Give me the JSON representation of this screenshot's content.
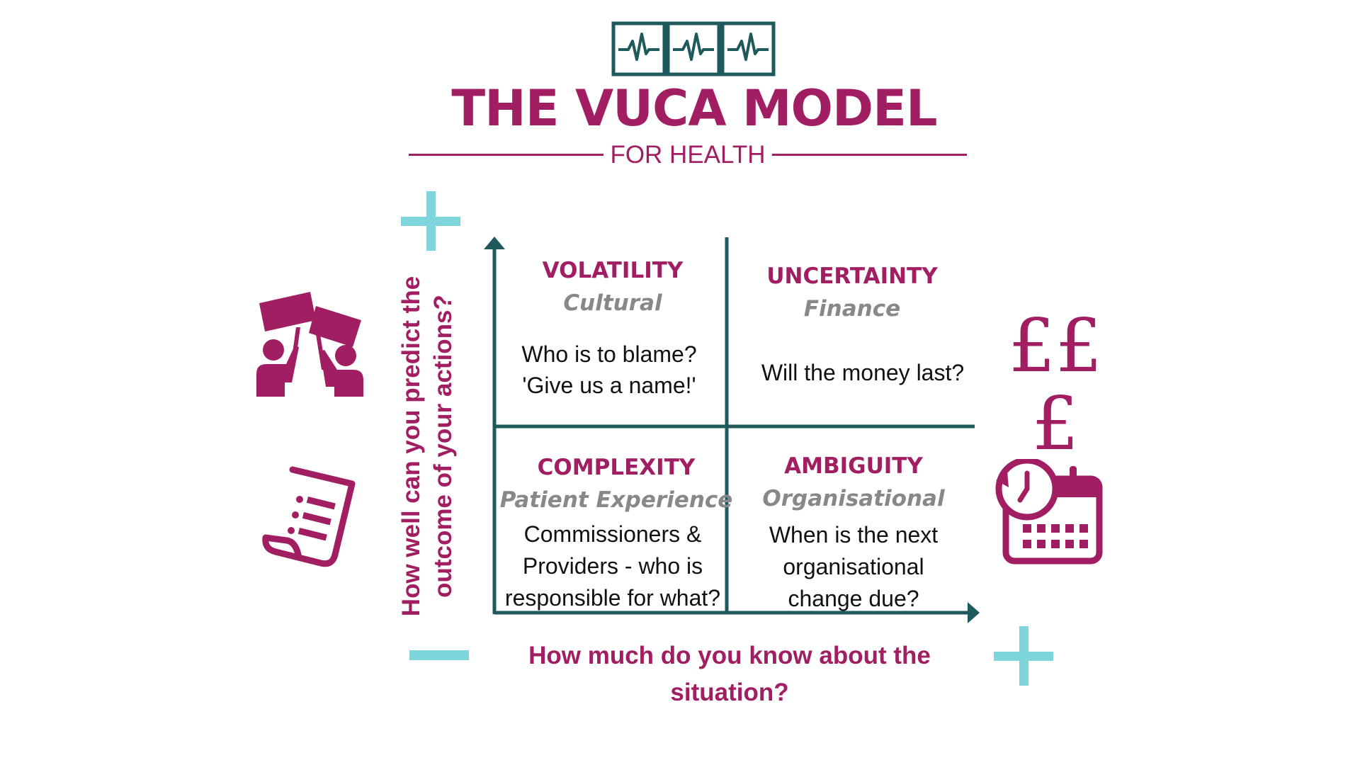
{
  "header": {
    "title": "THE VUCA MODEL",
    "subtitle": "FOR HEALTH",
    "logo_icon": "heartbeat-monitor-icon"
  },
  "axes": {
    "y_label": "How well can you predict the outcome of your actions?",
    "x_label": "How much do you know about the situation?",
    "y_top_sign": "+",
    "x_left_sign": "−",
    "x_right_sign": "+"
  },
  "quadrants": {
    "volatility": {
      "title": "VOLATILITY",
      "subtitle": "Cultural",
      "body_line1": "Who is to blame?",
      "body_line2": "'Give us a name!'",
      "icon": "protest-icon"
    },
    "uncertainty": {
      "title": "UNCERTAINTY",
      "subtitle": "Finance",
      "body_line1": "Will the money last?",
      "icon_text": "£££"
    },
    "complexity": {
      "title": "COMPLEXITY",
      "subtitle": "Patient Experience",
      "body_line1": "Commissioners &",
      "body_line2": "Providers - who is",
      "body_line3": "responsible for what?",
      "icon": "document-icon"
    },
    "ambiguity": {
      "title": "AMBIGUITY",
      "subtitle": "Organisational",
      "body_line1": "When is the next",
      "body_line2": "organisational",
      "body_line3": "change due?",
      "icon": "calendar-clock-icon"
    }
  },
  "colors": {
    "primary": "#a21e62",
    "axis": "#1e5a5c",
    "accent": "#7fd5dc",
    "muted": "#888888",
    "text": "#111111"
  }
}
